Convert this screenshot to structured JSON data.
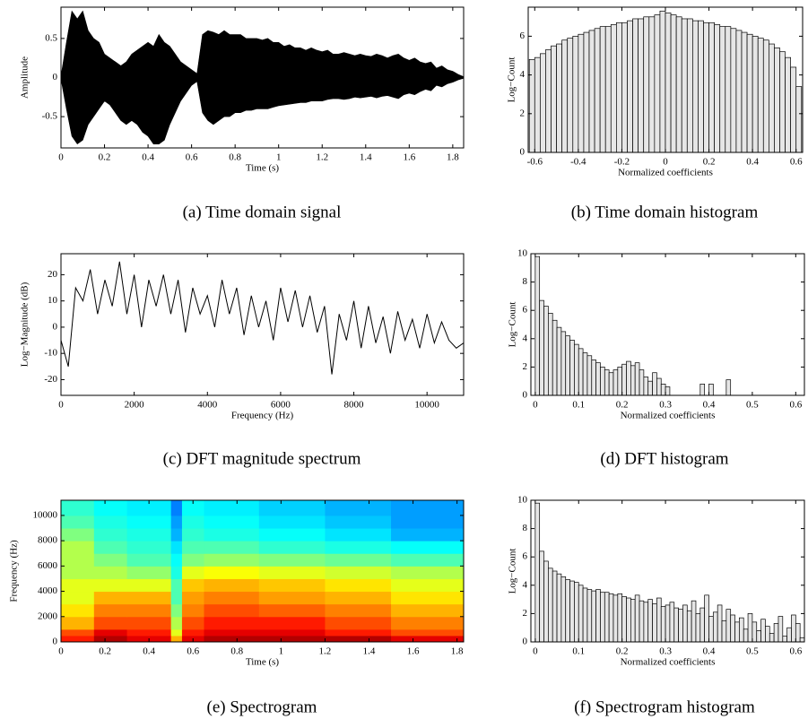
{
  "chart_data": [
    {
      "type": "area",
      "caption": "(a) Time domain signal",
      "xlabel": "Time (s)",
      "ylabel": "Amplitude",
      "x": [
        0,
        0.025,
        0.05,
        0.075,
        0.1,
        0.125,
        0.15,
        0.175,
        0.2,
        0.225,
        0.25,
        0.275,
        0.3,
        0.325,
        0.35,
        0.375,
        0.4,
        0.425,
        0.45,
        0.475,
        0.5,
        0.525,
        0.55,
        0.575,
        0.6,
        0.625,
        0.65,
        0.675,
        0.7,
        0.725,
        0.75,
        0.775,
        0.8,
        0.825,
        0.85,
        0.875,
        0.9,
        0.925,
        0.95,
        0.975,
        1.0,
        1.025,
        1.05,
        1.075,
        1.1,
        1.125,
        1.15,
        1.175,
        1.2,
        1.225,
        1.25,
        1.275,
        1.3,
        1.325,
        1.35,
        1.375,
        1.4,
        1.425,
        1.45,
        1.475,
        1.5,
        1.525,
        1.55,
        1.575,
        1.6,
        1.625,
        1.65,
        1.675,
        1.7,
        1.725,
        1.75,
        1.775,
        1.8,
        1.825,
        1.85
      ],
      "series": [
        {
          "color": "#000000",
          "values": [
            0.02,
            0.45,
            0.85,
            0.75,
            0.85,
            0.6,
            0.5,
            0.45,
            0.3,
            0.25,
            0.2,
            0.15,
            0.2,
            0.3,
            0.35,
            0.4,
            0.45,
            0.4,
            0.55,
            0.45,
            0.4,
            0.3,
            0.2,
            0.15,
            0.1,
            0.05,
            0.55,
            0.6,
            0.58,
            0.55,
            0.6,
            0.55,
            0.55,
            0.55,
            0.5,
            0.5,
            0.5,
            0.48,
            0.5,
            0.45,
            0.45,
            0.4,
            0.42,
            0.38,
            0.38,
            0.35,
            0.38,
            0.35,
            0.33,
            0.35,
            0.3,
            0.3,
            0.32,
            0.3,
            0.28,
            0.3,
            0.28,
            0.27,
            0.3,
            0.28,
            0.25,
            0.28,
            0.3,
            0.25,
            0.22,
            0.25,
            0.2,
            0.18,
            0.2,
            0.12,
            0.15,
            0.1,
            0.08,
            0.04,
            0.01
          ]
        },
        {
          "color": "#000000",
          "values": [
            -0.02,
            -0.4,
            -0.75,
            -0.85,
            -0.8,
            -0.6,
            -0.5,
            -0.4,
            -0.3,
            -0.35,
            -0.45,
            -0.55,
            -0.6,
            -0.55,
            -0.6,
            -0.7,
            -0.75,
            -0.85,
            -0.85,
            -0.8,
            -0.6,
            -0.45,
            -0.3,
            -0.2,
            -0.1,
            -0.05,
            -0.45,
            -0.55,
            -0.6,
            -0.55,
            -0.5,
            -0.5,
            -0.45,
            -0.45,
            -0.42,
            -0.42,
            -0.4,
            -0.4,
            -0.4,
            -0.38,
            -0.36,
            -0.35,
            -0.34,
            -0.33,
            -0.32,
            -0.32,
            -0.3,
            -0.3,
            -0.3,
            -0.28,
            -0.27,
            -0.27,
            -0.28,
            -0.27,
            -0.25,
            -0.26,
            -0.25,
            -0.24,
            -0.26,
            -0.24,
            -0.23,
            -0.25,
            -0.27,
            -0.22,
            -0.2,
            -0.22,
            -0.18,
            -0.15,
            -0.17,
            -0.1,
            -0.12,
            -0.08,
            -0.06,
            -0.03,
            -0.01
          ]
        }
      ],
      "xlim": [
        0,
        1.85
      ],
      "xticks": [
        0,
        0.2,
        0.4,
        0.6,
        0.8,
        1,
        1.2,
        1.4,
        1.6,
        1.8
      ],
      "ylim": [
        -0.9,
        0.9
      ],
      "yticks": [
        -0.5,
        0,
        0.5
      ],
      "grid": false
    },
    {
      "type": "histogram",
      "caption": "(b) Time domain histogram",
      "xlabel": "Normalized coefficients",
      "ylabel": "Log−Count",
      "color": "#e6e6e6",
      "edgecolor": "#000000",
      "bins": [
        -0.625,
        -0.6,
        -0.575,
        -0.55,
        -0.525,
        -0.5,
        -0.475,
        -0.45,
        -0.425,
        -0.4,
        -0.375,
        -0.35,
        -0.325,
        -0.3,
        -0.275,
        -0.25,
        -0.225,
        -0.2,
        -0.175,
        -0.15,
        -0.125,
        -0.1,
        -0.075,
        -0.05,
        -0.025,
        0,
        0.025,
        0.05,
        0.075,
        0.1,
        0.125,
        0.15,
        0.175,
        0.2,
        0.225,
        0.25,
        0.275,
        0.3,
        0.325,
        0.35,
        0.375,
        0.4,
        0.425,
        0.45,
        0.475,
        0.5,
        0.525,
        0.55,
        0.575,
        0.6,
        0.625
      ],
      "values": [
        4.8,
        4.9,
        5.1,
        5.3,
        5.5,
        5.6,
        5.8,
        5.9,
        6.0,
        6.1,
        6.2,
        6.3,
        6.4,
        6.5,
        6.5,
        6.6,
        6.7,
        6.7,
        6.8,
        6.9,
        6.9,
        7.0,
        7.0,
        7.1,
        7.3,
        7.2,
        7.1,
        7.0,
        6.9,
        6.9,
        6.8,
        6.8,
        6.7,
        6.7,
        6.6,
        6.5,
        6.5,
        6.4,
        6.3,
        6.2,
        6.1,
        6.0,
        5.9,
        5.8,
        5.6,
        5.4,
        5.2,
        4.9,
        4.4,
        3.4
      ],
      "xlim": [
        -0.63,
        0.63
      ],
      "xticks": [
        -0.6,
        -0.4,
        -0.2,
        0,
        0.2,
        0.4,
        0.6
      ],
      "ylim": [
        0,
        7.5
      ],
      "yticks": [
        0,
        2,
        4,
        6
      ],
      "grid": false
    },
    {
      "type": "line",
      "caption": "(c) DFT magnitude spectrum",
      "xlabel": "Frequency (Hz)",
      "ylabel": "Log−Magnitude (dB)",
      "color": "#000000",
      "x": [
        0,
        200,
        400,
        600,
        800,
        1000,
        1200,
        1400,
        1600,
        1800,
        2000,
        2200,
        2400,
        2600,
        2800,
        3000,
        3200,
        3400,
        3600,
        3800,
        4000,
        4200,
        4400,
        4600,
        4800,
        5000,
        5200,
        5400,
        5600,
        5800,
        6000,
        6200,
        6400,
        6600,
        6800,
        7000,
        7200,
        7400,
        7600,
        7800,
        8000,
        8200,
        8400,
        8600,
        8800,
        9000,
        9200,
        9400,
        9600,
        9800,
        10000,
        10200,
        10400,
        10600,
        10800,
        11000
      ],
      "values": [
        -5,
        -15,
        15,
        10,
        22,
        5,
        18,
        8,
        25,
        5,
        20,
        0,
        18,
        8,
        20,
        5,
        18,
        -2,
        15,
        5,
        12,
        0,
        18,
        5,
        15,
        -3,
        12,
        0,
        10,
        -5,
        15,
        2,
        14,
        0,
        12,
        -2,
        8,
        -18,
        5,
        -5,
        10,
        -8,
        8,
        -6,
        4,
        -10,
        6,
        -5,
        3,
        -8,
        5,
        -6,
        2,
        -5,
        -8,
        -6
      ],
      "xlim": [
        0,
        11000
      ],
      "xticks": [
        0,
        2000,
        4000,
        6000,
        8000,
        10000
      ],
      "ylim": [
        -26,
        28
      ],
      "yticks": [
        -20,
        -10,
        0,
        10,
        20
      ],
      "grid": false
    },
    {
      "type": "histogram",
      "caption": "(d) DFT histogram",
      "xlabel": "Normalized coefficients",
      "ylabel": "Log−Count",
      "color": "#e6e6e6",
      "edgecolor": "#000000",
      "bins": [
        0,
        0.01,
        0.02,
        0.03,
        0.04,
        0.05,
        0.06,
        0.07,
        0.08,
        0.09,
        0.1,
        0.11,
        0.12,
        0.13,
        0.14,
        0.15,
        0.16,
        0.17,
        0.18,
        0.19,
        0.2,
        0.21,
        0.22,
        0.23,
        0.24,
        0.25,
        0.26,
        0.27,
        0.28,
        0.29,
        0.3,
        0.31,
        0.32,
        0.33,
        0.34,
        0.35,
        0.36,
        0.37,
        0.38,
        0.39,
        0.4,
        0.41,
        0.42,
        0.43,
        0.44,
        0.45,
        0.46,
        0.47,
        0.48,
        0.49,
        0.5,
        0.51,
        0.52,
        0.53,
        0.54,
        0.55,
        0.56,
        0.57,
        0.58,
        0.59,
        0.6,
        0.61,
        0.62
      ],
      "values": [
        9.8,
        6.7,
        6.3,
        5.8,
        5.3,
        4.8,
        4.5,
        4.2,
        3.9,
        3.6,
        3.3,
        3.0,
        2.8,
        2.5,
        2.3,
        2.0,
        1.8,
        1.6,
        1.8,
        2.0,
        2.2,
        2.4,
        2.1,
        2.3,
        1.8,
        1.3,
        1.0,
        1.6,
        1.2,
        0.8,
        0.6,
        0,
        0,
        0,
        0,
        0,
        0,
        0,
        0.8,
        0,
        0.8,
        0,
        0,
        0,
        1.1,
        0,
        0,
        0,
        0,
        0,
        0,
        0,
        0,
        0,
        0,
        0,
        0,
        0,
        0,
        0,
        0,
        0
      ],
      "xlim": [
        -0.01,
        0.62
      ],
      "xticks": [
        0,
        0.1,
        0.2,
        0.3,
        0.4,
        0.5,
        0.6
      ],
      "ylim": [
        0,
        10
      ],
      "yticks": [
        0,
        2,
        4,
        6,
        8,
        10
      ],
      "grid": false
    },
    {
      "type": "heatmap",
      "caption": "(e) Spectrogram",
      "xlabel": "Time (s)",
      "ylabel": "Frequency (Hz)",
      "xbins": [
        0,
        0.15,
        0.3,
        0.5,
        0.55,
        0.65,
        0.9,
        1.2,
        1.5,
        1.83
      ],
      "ybins": [
        0,
        500,
        1000,
        2000,
        3000,
        4000,
        5000,
        6000,
        7000,
        8000,
        9000,
        10000,
        11200
      ],
      "z": [
        [
          0.85,
          0.95,
          0.9,
          0.7,
          0.9,
          0.95,
          0.95,
          0.95,
          0.9
        ],
        [
          0.8,
          0.9,
          0.85,
          0.6,
          0.85,
          0.9,
          0.9,
          0.85,
          0.8
        ],
        [
          0.7,
          0.8,
          0.8,
          0.55,
          0.8,
          0.85,
          0.85,
          0.8,
          0.75
        ],
        [
          0.65,
          0.75,
          0.75,
          0.5,
          0.75,
          0.8,
          0.78,
          0.75,
          0.7
        ],
        [
          0.6,
          0.7,
          0.7,
          0.45,
          0.72,
          0.75,
          0.72,
          0.7,
          0.65
        ],
        [
          0.6,
          0.6,
          0.6,
          0.45,
          0.68,
          0.7,
          0.68,
          0.65,
          0.6
        ],
        [
          0.55,
          0.55,
          0.52,
          0.4,
          0.6,
          0.62,
          0.6,
          0.58,
          0.55
        ],
        [
          0.55,
          0.5,
          0.45,
          0.38,
          0.5,
          0.52,
          0.5,
          0.48,
          0.45
        ],
        [
          0.55,
          0.45,
          0.42,
          0.35,
          0.45,
          0.45,
          0.42,
          0.4,
          0.38
        ],
        [
          0.5,
          0.42,
          0.4,
          0.3,
          0.42,
          0.4,
          0.38,
          0.35,
          0.3
        ],
        [
          0.45,
          0.4,
          0.38,
          0.28,
          0.4,
          0.38,
          0.35,
          0.32,
          0.28
        ],
        [
          0.42,
          0.38,
          0.36,
          0.25,
          0.38,
          0.36,
          0.33,
          0.3,
          0.28
        ]
      ],
      "colormap": "jet",
      "xlim": [
        0,
        1.83
      ],
      "xticks": [
        0,
        0.2,
        0.4,
        0.6,
        0.8,
        1,
        1.2,
        1.4,
        1.6,
        1.8
      ],
      "ylim": [
        0,
        11200
      ],
      "yticks": [
        0,
        2000,
        4000,
        6000,
        8000,
        10000
      ],
      "grid": false
    },
    {
      "type": "histogram",
      "caption": "(f) Spectrogram histogram",
      "xlabel": "Normalized coefficients",
      "ylabel": "Log−Count",
      "color": "#e6e6e6",
      "edgecolor": "#000000",
      "bins": [
        0,
        0.01,
        0.02,
        0.03,
        0.04,
        0.05,
        0.06,
        0.07,
        0.08,
        0.09,
        0.1,
        0.11,
        0.12,
        0.13,
        0.14,
        0.15,
        0.16,
        0.17,
        0.18,
        0.19,
        0.2,
        0.21,
        0.22,
        0.23,
        0.24,
        0.25,
        0.26,
        0.27,
        0.28,
        0.29,
        0.3,
        0.31,
        0.32,
        0.33,
        0.34,
        0.35,
        0.36,
        0.37,
        0.38,
        0.39,
        0.4,
        0.41,
        0.42,
        0.43,
        0.44,
        0.45,
        0.46,
        0.47,
        0.48,
        0.49,
        0.5,
        0.51,
        0.52,
        0.53,
        0.54,
        0.55,
        0.56,
        0.57,
        0.58,
        0.59,
        0.6,
        0.61,
        0.62
      ],
      "values": [
        9.8,
        6.4,
        5.7,
        5.2,
        5.0,
        4.8,
        4.6,
        4.4,
        4.3,
        4.2,
        4.0,
        3.8,
        3.7,
        3.6,
        3.7,
        3.5,
        3.5,
        3.4,
        3.3,
        3.4,
        3.2,
        3.1,
        3.0,
        3.3,
        2.9,
        2.8,
        3.0,
        2.7,
        3.1,
        2.5,
        2.6,
        2.8,
        2.4,
        2.3,
        2.6,
        2.2,
        2.9,
        2.0,
        2.4,
        3.3,
        1.8,
        2.1,
        2.6,
        1.5,
        2.3,
        1.9,
        1.4,
        1.7,
        0.9,
        2.0,
        1.4,
        0.8,
        1.6,
        1.1,
        0.6,
        1.3,
        1.8,
        0.4,
        1.0,
        1.9,
        1.3,
        0.3
      ],
      "xlim": [
        -0.01,
        0.62
      ],
      "xticks": [
        0,
        0.1,
        0.2,
        0.3,
        0.4,
        0.5,
        0.6
      ],
      "ylim": [
        0,
        10
      ],
      "yticks": [
        0,
        2,
        4,
        6,
        8,
        10
      ],
      "grid": false
    }
  ]
}
